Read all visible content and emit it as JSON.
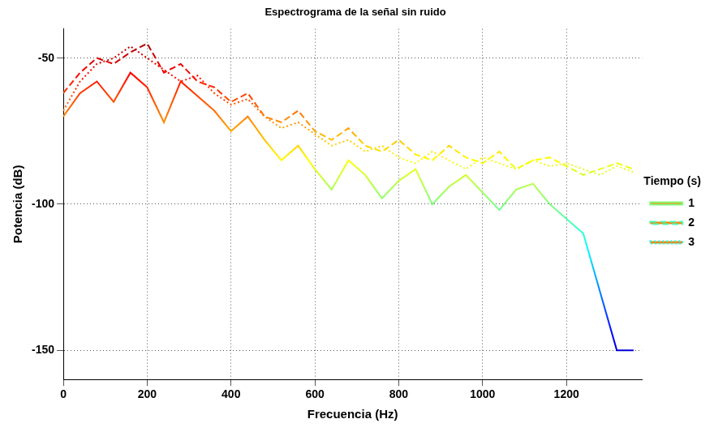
{
  "chart_data": {
    "type": "line",
    "title": "Espectrograma de la señal sin ruido",
    "x_label": "Frecuencia (Hz)",
    "y_label": "Potencia (dB)",
    "legend_title": "Tiempo (s)",
    "legend": "right",
    "grid": true,
    "x": [
      0,
      40,
      80,
      120,
      160,
      200,
      240,
      280,
      320,
      360,
      400,
      440,
      480,
      520,
      560,
      600,
      640,
      680,
      720,
      760,
      800,
      840,
      880,
      920,
      960,
      1000,
      1040,
      1080,
      1120,
      1160,
      1200,
      1240,
      1280,
      1320,
      1360
    ],
    "xlim": [
      0,
      1380
    ],
    "xticks": [
      0,
      200,
      400,
      600,
      800,
      1000,
      1200
    ],
    "ylim": [
      -160,
      -40
    ],
    "yticks": [
      -150,
      -100,
      -50
    ],
    "series": [
      {
        "name": "1",
        "line_style": "solid",
        "values": [
          -70,
          -62,
          -58,
          -65,
          -55,
          -60,
          -72,
          -58,
          -63,
          -68,
          -75,
          -70,
          -78,
          -85,
          -80,
          -88,
          -95,
          -85,
          -90,
          -98,
          -92,
          -88,
          -100,
          -94,
          -90,
          -96,
          -102,
          -95,
          -93,
          -100,
          -105,
          -110,
          -130,
          -150,
          -150
        ]
      },
      {
        "name": "2",
        "line_style": "dashed",
        "values": [
          -62,
          -55,
          -50,
          -52,
          -48,
          -45,
          -55,
          -52,
          -58,
          -60,
          -65,
          -62,
          -70,
          -72,
          -68,
          -75,
          -78,
          -74,
          -80,
          -82,
          -78,
          -83,
          -85,
          -80,
          -84,
          -86,
          -82,
          -88,
          -85,
          -84,
          -87,
          -90,
          -88,
          -86,
          -88
        ]
      },
      {
        "name": "3",
        "line_style": "dotted",
        "values": [
          -68,
          -58,
          -52,
          -50,
          -46,
          -50,
          -54,
          -58,
          -56,
          -62,
          -66,
          -64,
          -70,
          -74,
          -72,
          -76,
          -80,
          -78,
          -82,
          -80,
          -84,
          -86,
          -82,
          -85,
          -88,
          -84,
          -86,
          -88,
          -85,
          -87,
          -86,
          -88,
          -90,
          -87,
          -89
        ]
      }
    ]
  }
}
